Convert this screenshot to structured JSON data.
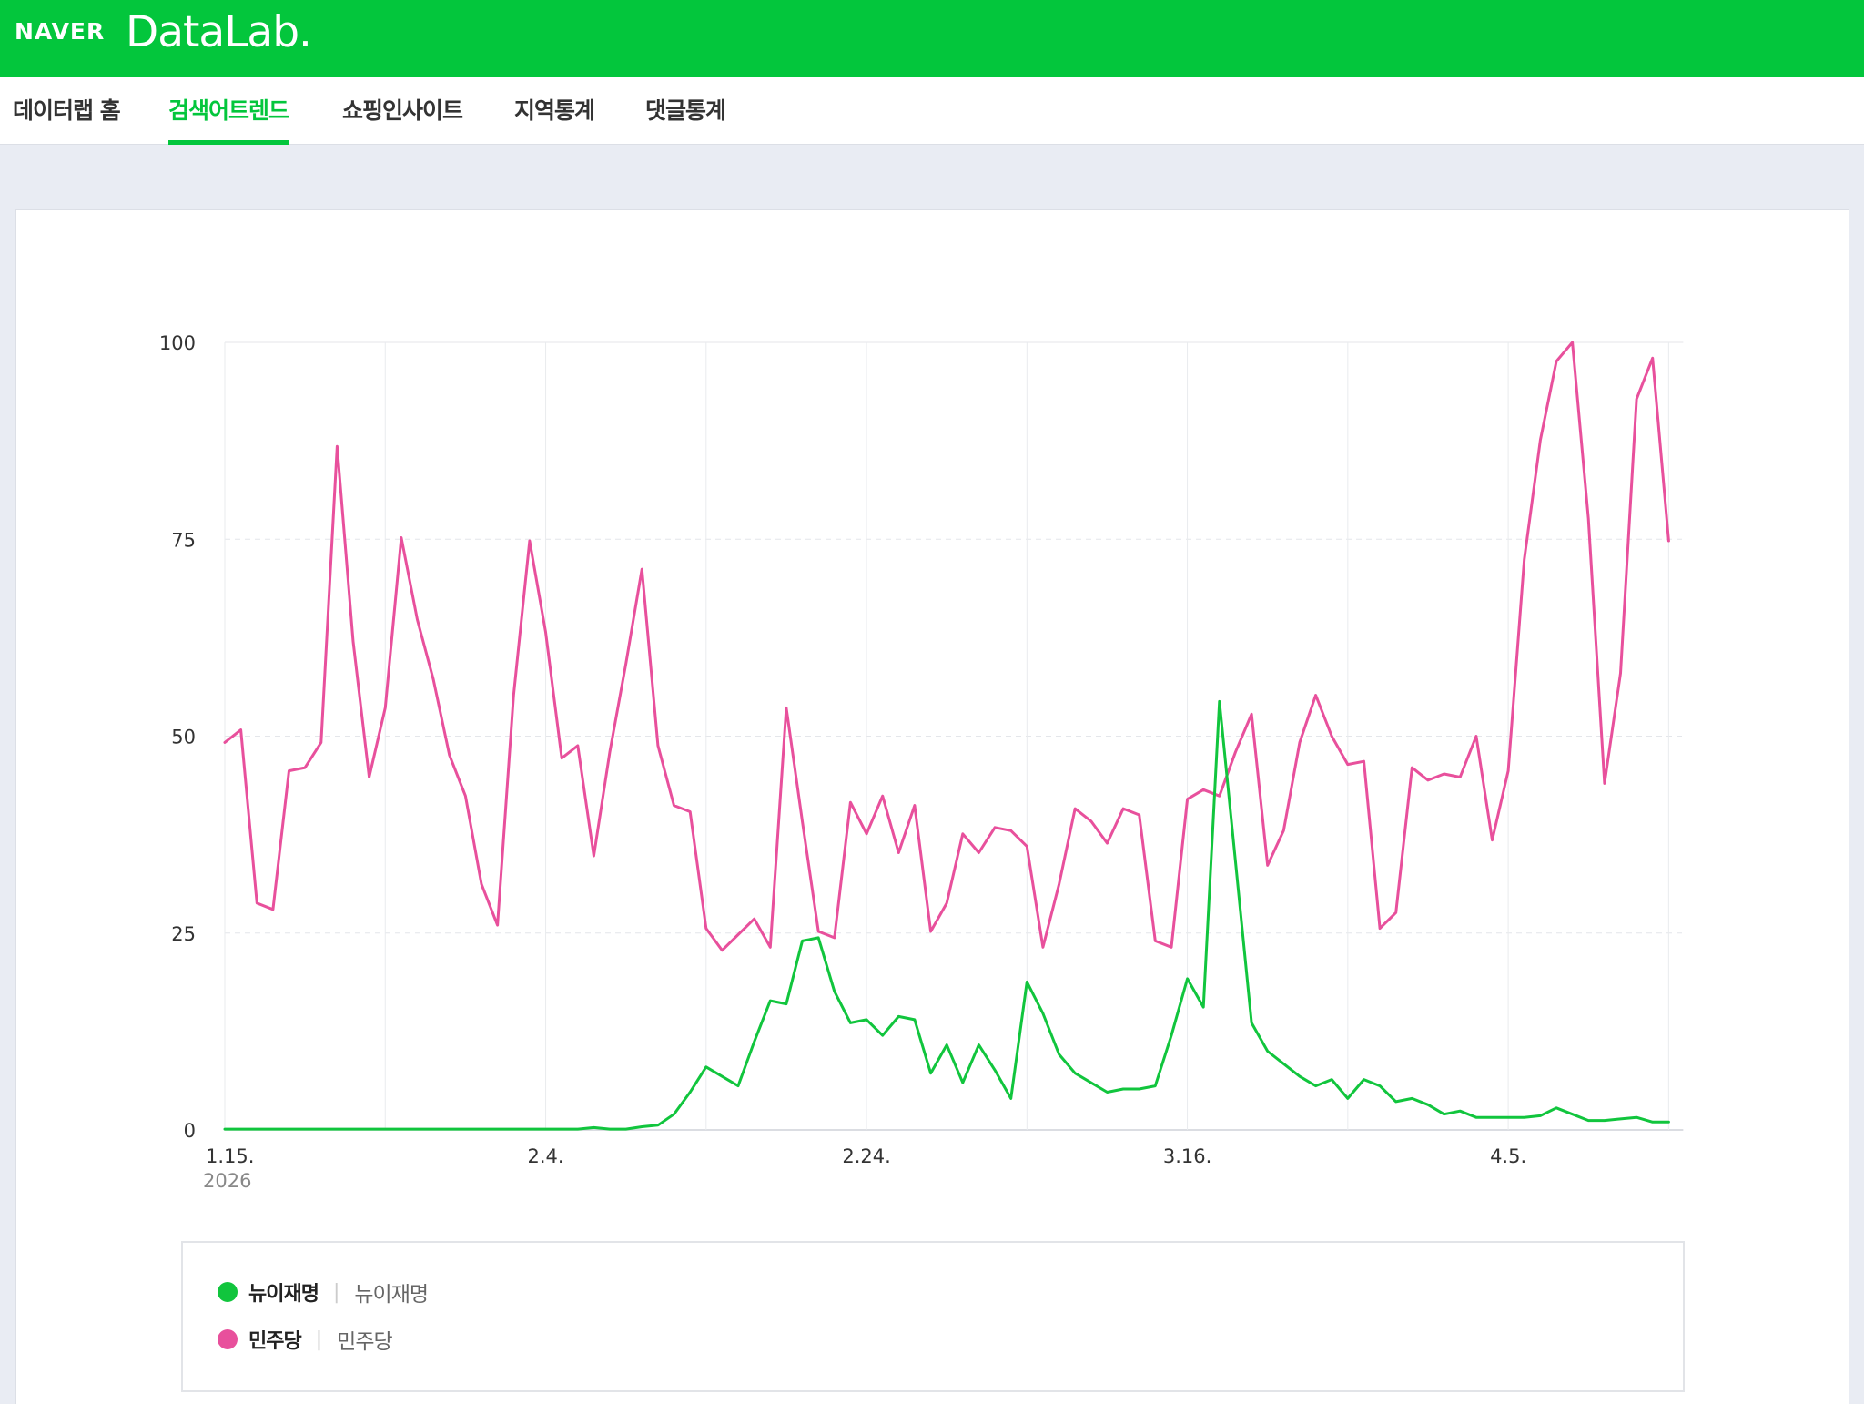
{
  "header": {
    "brand": "NAVER",
    "product": "DataLab."
  },
  "nav": {
    "items": [
      {
        "label": "데이터랩 홈",
        "active": false
      },
      {
        "label": "검색어트렌드",
        "active": true
      },
      {
        "label": "쇼핑인사이트",
        "active": false
      },
      {
        "label": "지역통계",
        "active": false
      },
      {
        "label": "댓글통계",
        "active": false
      }
    ]
  },
  "colors": {
    "brand_green": "#03c63c",
    "series_green": "#11c53d",
    "series_pink": "#e8509c"
  },
  "legend": [
    {
      "name": "뉴이재명",
      "keywords": "뉴이재명",
      "color": "#11c53d"
    },
    {
      "name": "민주당",
      "keywords": "민주당",
      "color": "#e8509c"
    }
  ],
  "chart_data": {
    "type": "line",
    "title": "",
    "xlabel": "",
    "ylabel": "",
    "ylim": [
      0,
      100
    ],
    "y_ticks": [
      0,
      25,
      50,
      75,
      100
    ],
    "grid": true,
    "x_tick_labels": [
      "1.15.",
      "2.4.",
      "2.24.",
      "3.16.",
      "4.5."
    ],
    "x_tick_dates": [
      "2026-01-15",
      "2026-02-04",
      "2026-02-24",
      "2026-03-16",
      "2026-04-05"
    ],
    "year_label": "2026",
    "x_start": "2026-01-15",
    "x_interval": "daily",
    "series": [
      {
        "name": "민주당",
        "color": "#e8509c",
        "values": [
          49.2,
          50.8,
          28.8,
          28.0,
          45.6,
          46.0,
          49.2,
          86.8,
          62.0,
          44.8,
          53.6,
          75.2,
          64.8,
          57.2,
          47.6,
          42.4,
          31.2,
          26.0,
          55.2,
          74.8,
          63.2,
          47.2,
          48.8,
          34.8,
          48.0,
          59.2,
          71.2,
          48.8,
          41.2,
          40.4,
          25.6,
          22.8,
          24.8,
          26.8,
          23.2,
          53.6,
          39.2,
          25.2,
          24.4,
          41.6,
          37.6,
          42.4,
          35.2,
          41.2,
          25.2,
          28.8,
          37.6,
          35.2,
          38.4,
          38.0,
          36.0,
          23.2,
          31.2,
          40.8,
          39.2,
          36.4,
          40.8,
          40.0,
          24.0,
          23.2,
          42.0,
          43.2,
          42.4,
          48.0,
          52.8,
          33.6,
          38.0,
          49.2,
          55.2,
          50.0,
          46.4,
          46.8,
          25.6,
          27.6,
          46.0,
          44.4,
          45.2,
          44.8,
          50.0,
          36.8,
          45.6,
          72.4,
          87.6,
          97.6,
          100.0,
          77.6,
          44.0,
          58.0,
          92.8,
          98.0,
          74.8
        ]
      },
      {
        "name": "뉴이재명",
        "color": "#11c53d",
        "values": [
          0.1,
          0.1,
          0.1,
          0.1,
          0.1,
          0.1,
          0.1,
          0.1,
          0.1,
          0.1,
          0.1,
          0.1,
          0.1,
          0.1,
          0.1,
          0.1,
          0.1,
          0.1,
          0.1,
          0.1,
          0.1,
          0.1,
          0.1,
          0.3,
          0.1,
          0.1,
          0.4,
          0.6,
          2.0,
          4.8,
          8.0,
          6.8,
          5.6,
          11.2,
          16.4,
          16.0,
          24.0,
          24.4,
          17.6,
          13.6,
          14.0,
          12.0,
          14.4,
          14.0,
          7.2,
          10.8,
          6.0,
          10.8,
          7.6,
          4.0,
          18.8,
          14.8,
          9.6,
          7.2,
          6.0,
          4.8,
          5.2,
          5.2,
          5.6,
          12.0,
          19.2,
          15.6,
          54.4,
          34.0,
          13.6,
          10.0,
          8.4,
          6.8,
          5.6,
          6.4,
          4.0,
          6.4,
          5.6,
          3.6,
          4.0,
          3.2,
          2.0,
          2.4,
          1.6,
          1.6,
          1.6,
          1.6,
          1.8,
          2.8,
          2.0,
          1.2,
          1.2,
          1.4,
          1.6,
          1.0,
          1.0
        ]
      }
    ]
  }
}
